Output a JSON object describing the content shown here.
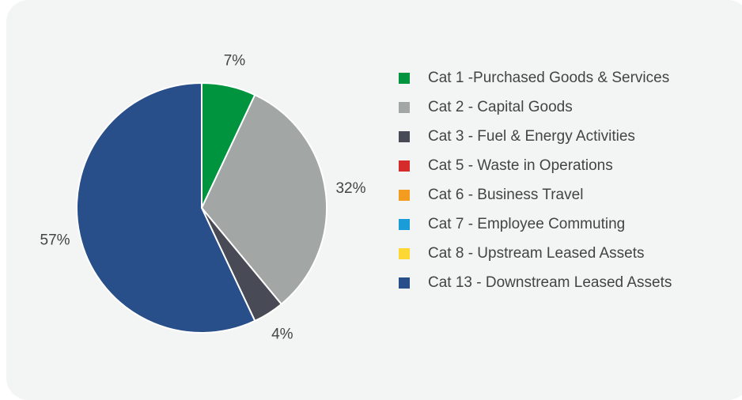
{
  "chart_data": {
    "type": "pie",
    "categories": [
      "Cat 1 -Purchased Goods & Services",
      "Cat 2 - Capital Goods",
      "Cat 3 - Fuel & Energy Activities",
      "Cat 5 - Waste in Operations",
      "Cat 6 - Business Travel",
      "Cat 7 - Employee Commuting",
      "Cat 8 - Upstream Leased Assets",
      "Cat 13 - Downstream Leased Assets"
    ],
    "values": [
      7,
      32,
      4,
      0,
      0,
      0,
      0,
      57
    ],
    "value_labels": [
      "7%",
      "32%",
      "4%",
      null,
      null,
      null,
      null,
      "57%"
    ],
    "colors": [
      "#00943f",
      "#a2a6a5",
      "#484a55",
      "#d52b2b",
      "#f39c1f",
      "#1a9cd8",
      "#fdd835",
      "#284f8a"
    ],
    "legend": "right"
  }
}
